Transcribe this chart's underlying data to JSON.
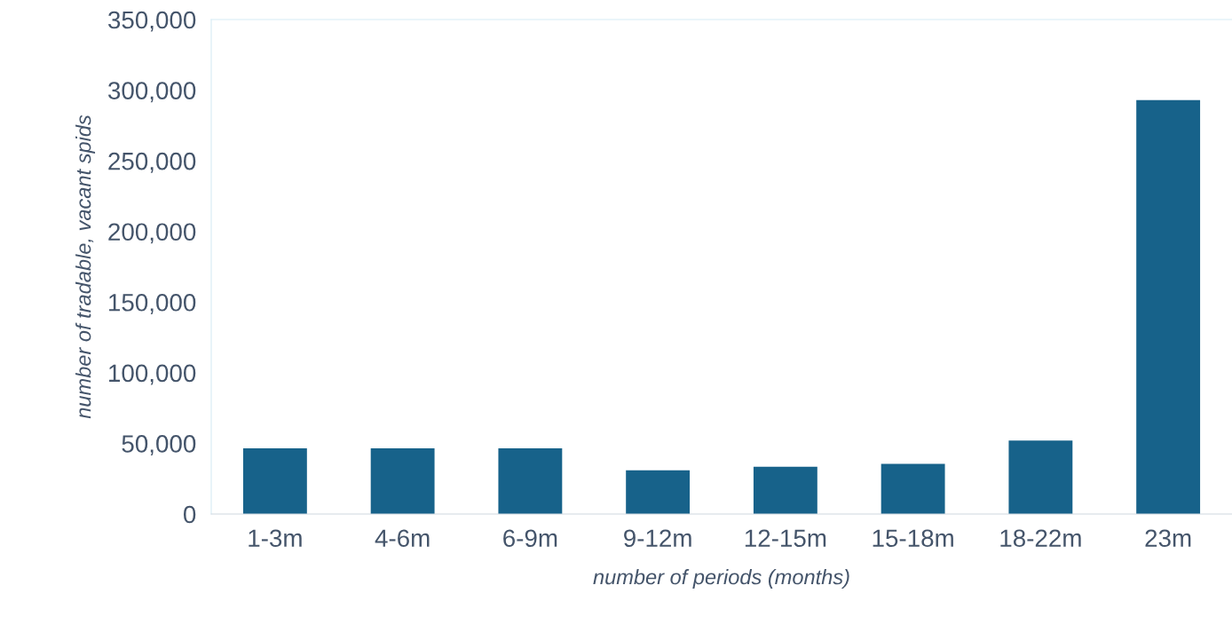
{
  "chart_data": {
    "type": "bar",
    "xlabel": "number of periods (months)",
    "ylabel": "number of tradable, vacant spids",
    "categories": [
      "1-3m",
      "4-6m",
      "6-9m",
      "9-12m",
      "12-15m",
      "15-18m",
      "18-22m",
      "23m"
    ],
    "values": [
      46500,
      46500,
      46500,
      31000,
      33500,
      35500,
      52000,
      293000
    ],
    "color": "#17628a",
    "ylim": [
      0,
      350000
    ],
    "yticks": [
      {
        "value": 0,
        "label": "0"
      },
      {
        "value": 50000,
        "label": "50,000"
      },
      {
        "value": 100000,
        "label": "100,000"
      },
      {
        "value": 150000,
        "label": "150,000"
      },
      {
        "value": 200000,
        "label": "200,000"
      },
      {
        "value": 250000,
        "label": "250,000"
      },
      {
        "value": 300000,
        "label": "300,000"
      },
      {
        "value": 350000,
        "label": "350,000"
      }
    ],
    "grid": false,
    "legend": false
  }
}
